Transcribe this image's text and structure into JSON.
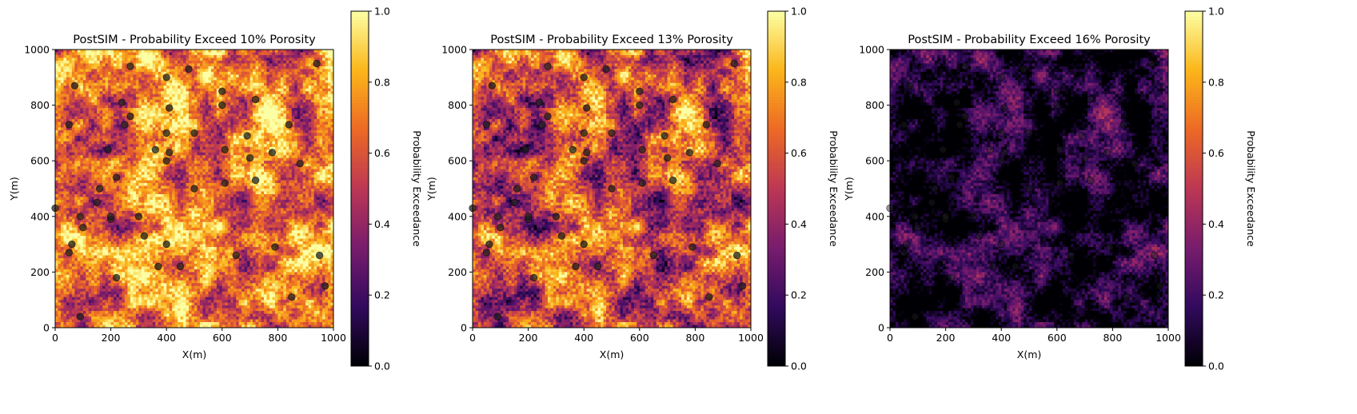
{
  "colormap": [
    "#000004",
    "#320a5e",
    "#781c6d",
    "#bc3754",
    "#ed6925",
    "#fbb61a",
    "#fcffa4"
  ],
  "well_marker_color": "#202020",
  "colorbar": {
    "label": "Probability Exceedance",
    "ticks": [
      "0.0",
      "0.2",
      "0.4",
      "0.6",
      "0.8",
      "1.0"
    ],
    "range": [
      0,
      1
    ]
  },
  "chart_data": [
    {
      "type": "heatmap",
      "title": "PostSIM - Probability Exceed 10% Porosity",
      "xlabel": "X(m)",
      "ylabel": "Y(m)",
      "xlim": [
        0,
        1000
      ],
      "ylim": [
        0,
        1000
      ],
      "xticks": [
        "0",
        "200",
        "400",
        "600",
        "800",
        "1000"
      ],
      "yticks": [
        "0",
        "200",
        "400",
        "600",
        "800",
        "1000"
      ],
      "grid_cells": 100,
      "mean_probability": 0.78
    },
    {
      "type": "heatmap",
      "title": "PostSIM - Probability Exceed 13% Porosity",
      "xlabel": "X(m)",
      "ylabel": "Y(m)",
      "xlim": [
        0,
        1000
      ],
      "ylim": [
        0,
        1000
      ],
      "xticks": [
        "0",
        "200",
        "400",
        "600",
        "800",
        "1000"
      ],
      "yticks": [
        "0",
        "200",
        "400",
        "600",
        "800",
        "1000"
      ],
      "grid_cells": 100,
      "mean_probability": 0.42
    },
    {
      "type": "heatmap",
      "title": "PostSIM - Probability Exceed 16% Porosity",
      "xlabel": "X(m)",
      "ylabel": "Y(m)",
      "xlim": [
        0,
        1000
      ],
      "ylim": [
        0,
        1000
      ],
      "xticks": [
        "0",
        "200",
        "400",
        "600",
        "800",
        "1000"
      ],
      "yticks": [
        "0",
        "200",
        "400",
        "600",
        "800",
        "1000"
      ],
      "grid_cells": 100,
      "mean_probability": 0.12
    }
  ],
  "wells": [
    {
      "x": 0,
      "y": 430
    },
    {
      "x": 50,
      "y": 270
    },
    {
      "x": 60,
      "y": 300
    },
    {
      "x": 50,
      "y": 730
    },
    {
      "x": 70,
      "y": 870
    },
    {
      "x": 90,
      "y": 400
    },
    {
      "x": 100,
      "y": 360
    },
    {
      "x": 90,
      "y": 40
    },
    {
      "x": 150,
      "y": 450
    },
    {
      "x": 160,
      "y": 500
    },
    {
      "x": 190,
      "y": 640
    },
    {
      "x": 200,
      "y": 390
    },
    {
      "x": 200,
      "y": 400
    },
    {
      "x": 220,
      "y": 540
    },
    {
      "x": 220,
      "y": 180
    },
    {
      "x": 240,
      "y": 810
    },
    {
      "x": 250,
      "y": 730
    },
    {
      "x": 270,
      "y": 760
    },
    {
      "x": 270,
      "y": 940
    },
    {
      "x": 300,
      "y": 400
    },
    {
      "x": 320,
      "y": 330
    },
    {
      "x": 360,
      "y": 640
    },
    {
      "x": 370,
      "y": 220
    },
    {
      "x": 400,
      "y": 300
    },
    {
      "x": 400,
      "y": 600
    },
    {
      "x": 400,
      "y": 700
    },
    {
      "x": 400,
      "y": 900
    },
    {
      "x": 410,
      "y": 790
    },
    {
      "x": 410,
      "y": 630
    },
    {
      "x": 450,
      "y": 220
    },
    {
      "x": 480,
      "y": 930
    },
    {
      "x": 500,
      "y": 700
    },
    {
      "x": 500,
      "y": 500
    },
    {
      "x": 600,
      "y": 850
    },
    {
      "x": 600,
      "y": 800
    },
    {
      "x": 610,
      "y": 640
    },
    {
      "x": 610,
      "y": 520
    },
    {
      "x": 650,
      "y": 260
    },
    {
      "x": 690,
      "y": 690
    },
    {
      "x": 700,
      "y": 610
    },
    {
      "x": 720,
      "y": 530
    },
    {
      "x": 720,
      "y": 820
    },
    {
      "x": 780,
      "y": 630
    },
    {
      "x": 790,
      "y": 290
    },
    {
      "x": 840,
      "y": 730
    },
    {
      "x": 850,
      "y": 110
    },
    {
      "x": 880,
      "y": 590
    },
    {
      "x": 940,
      "y": 950
    },
    {
      "x": 950,
      "y": 260
    },
    {
      "x": 970,
      "y": 150
    }
  ]
}
